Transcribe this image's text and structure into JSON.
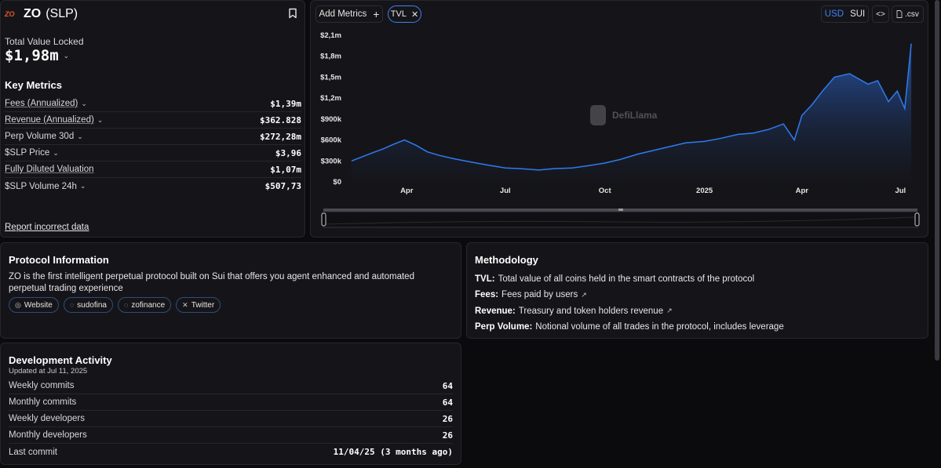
{
  "header": {
    "logo_text": "ZO",
    "name": "ZO",
    "symbol": "(SLP)"
  },
  "tvl": {
    "label": "Total Value Locked",
    "value": "$1,98m"
  },
  "key_metrics": {
    "title": "Key Metrics",
    "items": [
      {
        "label": "Fees (Annualized)",
        "value": "$1,39m",
        "underline": true,
        "chevron": true
      },
      {
        "label": "Revenue (Annualized)",
        "value": "$362.828",
        "underline": true,
        "chevron": true
      },
      {
        "label": "Perp Volume 30d",
        "value": "$272,28m",
        "underline": false,
        "chevron": true
      },
      {
        "label": "$SLP Price",
        "value": "$3,96",
        "underline": false,
        "chevron": true
      },
      {
        "label": "Fully Diluted Valuation",
        "value": "$1,07m",
        "underline": true,
        "chevron": false
      },
      {
        "label": "$SLP Volume 24h",
        "value": "$507,73",
        "underline": false,
        "chevron": true
      }
    ]
  },
  "report_link": "Report incorrect data",
  "chart_controls": {
    "add_metrics": "Add Metrics",
    "tvl_chip": "TVL",
    "currency_usd": "USD",
    "currency_sui": "SUI",
    "embed": "<>",
    "csv": ".csv",
    "watermark": "DefiLlama"
  },
  "chart_data": {
    "type": "area",
    "series": [
      {
        "name": "TVL"
      }
    ],
    "ylabel": "",
    "yticks": [
      "$0",
      "$300k",
      "$600k",
      "$900k",
      "$1,2m",
      "$1,5m",
      "$1,8m",
      "$2,1m"
    ],
    "ylim": [
      0,
      2100000
    ],
    "xticks": [
      "Apr",
      "Jul",
      "Oct",
      "2025",
      "Apr",
      "Jul"
    ],
    "x": [
      "2024-02-10",
      "2024-02-20",
      "2024-03-01",
      "2024-03-10",
      "2024-03-20",
      "2024-03-30",
      "2024-04-10",
      "2024-04-20",
      "2024-05-01",
      "2024-05-15",
      "2024-06-01",
      "2024-06-15",
      "2024-07-01",
      "2024-07-15",
      "2024-08-01",
      "2024-08-15",
      "2024-09-01",
      "2024-09-15",
      "2024-10-01",
      "2024-10-15",
      "2024-11-01",
      "2024-11-15",
      "2024-12-01",
      "2024-12-15",
      "2025-01-01",
      "2025-01-15",
      "2025-02-01",
      "2025-02-15",
      "2025-03-01",
      "2025-03-15",
      "2025-03-25",
      "2025-04-01",
      "2025-04-10",
      "2025-04-20",
      "2025-05-01",
      "2025-05-15",
      "2025-06-01",
      "2025-06-10",
      "2025-06-20",
      "2025-06-28",
      "2025-07-05",
      "2025-07-11"
    ],
    "values": [
      300000,
      360000,
      420000,
      470000,
      540000,
      600000,
      520000,
      430000,
      380000,
      330000,
      280000,
      240000,
      200000,
      190000,
      170000,
      190000,
      200000,
      230000,
      270000,
      320000,
      400000,
      450000,
      510000,
      560000,
      580000,
      620000,
      680000,
      700000,
      750000,
      830000,
      600000,
      950000,
      1100000,
      1300000,
      1500000,
      1550000,
      1400000,
      1450000,
      1150000,
      1300000,
      1050000,
      1980000
    ]
  },
  "protocol_info": {
    "title": "Protocol Information",
    "description": "ZO is the first intelligent perpetual protocol built on Sui that offers you agent enhanced and automated perpetual trading experience",
    "links": [
      {
        "icon": "globe-icon",
        "label": "Website"
      },
      {
        "icon": "github-icon",
        "label": "sudofina"
      },
      {
        "icon": "github-icon",
        "label": "zofinance"
      },
      {
        "icon": "x-icon",
        "label": "Twitter"
      }
    ]
  },
  "methodology": {
    "title": "Methodology",
    "items": [
      {
        "key": "TVL:",
        "text": "Total value of all coins held in the smart contracts of the protocol",
        "external": false
      },
      {
        "key": "Fees:",
        "text": "Fees paid by users",
        "external": true
      },
      {
        "key": "Revenue:",
        "text": "Treasury and token holders revenue",
        "external": true
      },
      {
        "key": "Perp Volume:",
        "text": "Notional volume of all trades in the protocol, includes leverage",
        "external": false
      }
    ]
  },
  "dev_activity": {
    "title": "Development Activity",
    "updated": "Updated at Jul 11, 2025",
    "rows": [
      {
        "label": "Weekly commits",
        "value": "64"
      },
      {
        "label": "Monthly commits",
        "value": "64"
      },
      {
        "label": "Weekly developers",
        "value": "26"
      },
      {
        "label": "Monthly developers",
        "value": "26"
      },
      {
        "label": "Last commit",
        "value": "11/04/25 (3 months ago)"
      }
    ]
  },
  "colors": {
    "accent": "#3b82f6",
    "line": "#2f7bf0",
    "background": "#0b0b0e",
    "panel": "#151519"
  }
}
